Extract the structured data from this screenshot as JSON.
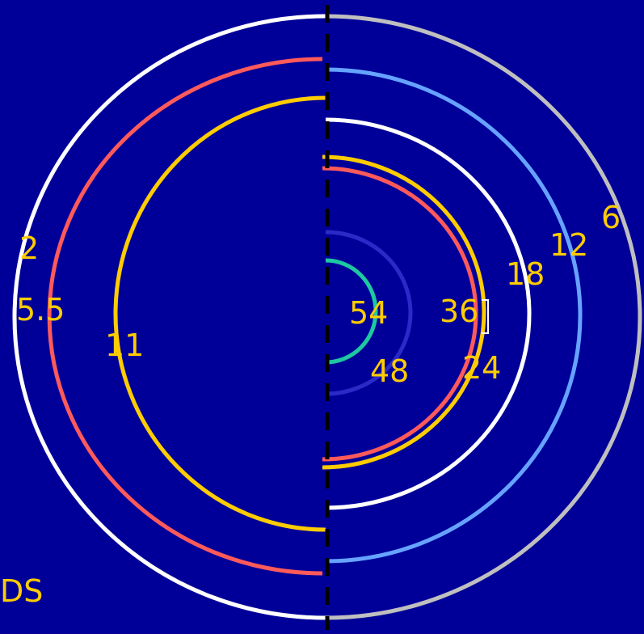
{
  "colors": {
    "background": "#000099",
    "white": "#ffffff",
    "red": "#ff5a5a",
    "yellow": "#ffcc00",
    "light_blue": "#66a3ff",
    "gray": "#bfbfbf",
    "dark_blue": "#2a2ac8",
    "teal": "#1ec8a0",
    "divider": "#000000"
  },
  "left_labels": [
    "2",
    "5.5",
    "11",
    "DS"
  ],
  "right_labels": [
    "6",
    "12",
    "18",
    "24",
    "36",
    "48",
    "54"
  ]
}
